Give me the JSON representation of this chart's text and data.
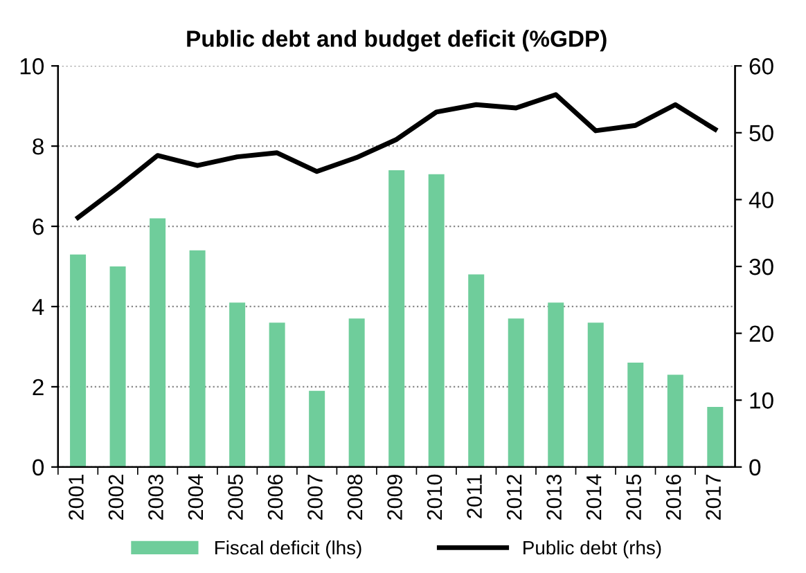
{
  "chart_data": {
    "type": "bar",
    "title": "Public debt and budget deficit (%GDP)",
    "categories": [
      "2001",
      "2002",
      "2003",
      "2004",
      "2005",
      "2006",
      "2007",
      "2008",
      "2009",
      "2010",
      "2011",
      "2012",
      "2013",
      "2014",
      "2015",
      "2016",
      "2017"
    ],
    "series": [
      {
        "name": "Fiscal deficit (lhs)",
        "color": "#6fcd9b",
        "values": [
          5.3,
          5.0,
          6.2,
          5.4,
          4.1,
          3.6,
          1.9,
          3.7,
          7.4,
          7.3,
          4.8,
          3.7,
          4.1,
          3.6,
          2.6,
          2.3,
          1.5
        ]
      },
      {
        "name": "Public debt (rhs)",
        "type": "line",
        "axis": "y2",
        "color": "#000000",
        "values": [
          37.3,
          41.8,
          46.6,
          45.1,
          46.4,
          47.0,
          44.2,
          46.3,
          49,
          53.1,
          54.2,
          53.7,
          55.7,
          50.3,
          51.1,
          54.2,
          50.5
        ]
      }
    ],
    "ylim": [
      0,
      10
    ],
    "yticks": [
      0,
      2,
      4,
      6,
      8,
      10
    ],
    "y2lim": [
      0,
      60
    ],
    "y2ticks": [
      0,
      10,
      20,
      30,
      40,
      50,
      60
    ],
    "grid": "y",
    "legend": "bottom",
    "marker": "none",
    "line_style": "solid"
  }
}
